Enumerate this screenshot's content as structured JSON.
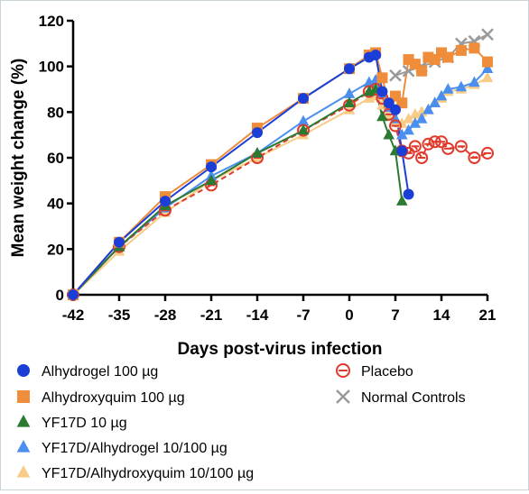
{
  "chart_data": {
    "type": "line",
    "title": "",
    "xlabel": "Days post-virus infection",
    "ylabel": "Mean weight change (%)",
    "xticks": [
      -42,
      -35,
      -28,
      -21,
      -14,
      -7,
      0,
      7,
      14,
      21
    ],
    "yticks": [
      0,
      20,
      40,
      60,
      80,
      100,
      120
    ],
    "xlim": [
      -42,
      21
    ],
    "ylim": [
      0,
      120
    ],
    "grid": false,
    "legend_position": "bottom",
    "series": [
      {
        "name": "Alhydrogel 100 µg",
        "color": "#1a3ed6",
        "marker": "circle",
        "dash": "",
        "x": [
          -42,
          -35,
          -28,
          -21,
          -14,
          -7,
          0,
          3,
          4,
          5,
          6,
          7,
          8,
          9
        ],
        "y": [
          0,
          23,
          41,
          56,
          71,
          86,
          99,
          104,
          105,
          89,
          84,
          81,
          63,
          44
        ]
      },
      {
        "name": "Alhydroxyquim 100 µg",
        "color": "#ef8d3b",
        "marker": "square",
        "dash": "",
        "x": [
          -42,
          -35,
          -28,
          -21,
          -14,
          -7,
          0,
          3,
          4,
          5,
          6,
          7,
          8,
          9,
          10,
          11,
          12,
          13,
          14,
          15,
          17,
          19,
          21
        ],
        "y": [
          0,
          23,
          43,
          57,
          73,
          86,
          99,
          105,
          106,
          95,
          84,
          87,
          84,
          103,
          101,
          98,
          104,
          103,
          106,
          104,
          107,
          108,
          102
        ]
      },
      {
        "name": "YF17D 10 µg",
        "color": "#2c7a32",
        "marker": "triangle",
        "dash": "",
        "x": [
          -42,
          -35,
          -28,
          -21,
          -14,
          -7,
          0,
          3,
          4,
          5,
          6,
          7,
          8
        ],
        "y": [
          0,
          21,
          39,
          50,
          62,
          72,
          84,
          89,
          90,
          78,
          70,
          63,
          41
        ]
      },
      {
        "name": "YF17D/Alhydrogel 10/100 µg",
        "color": "#4a8ff0",
        "marker": "triangle",
        "dash": "",
        "x": [
          -42,
          -35,
          -28,
          -21,
          -14,
          -7,
          0,
          3,
          4,
          5,
          6,
          7,
          8,
          9,
          10,
          11,
          12,
          13,
          14,
          15,
          17,
          19,
          21
        ],
        "y": [
          0,
          21,
          38,
          52,
          62,
          76,
          88,
          93,
          94,
          88,
          82,
          77,
          70,
          72,
          75,
          77,
          81,
          84,
          87,
          90,
          91,
          93,
          99
        ]
      },
      {
        "name": "YF17D/Alhydroxyquim 10/100 µg",
        "color": "#f7cc86",
        "marker": "triangle",
        "dash": "",
        "x": [
          -42,
          -35,
          -28,
          -21,
          -14,
          -7,
          0,
          3,
          4,
          5,
          6,
          7,
          8,
          9,
          10,
          11,
          12,
          13,
          14,
          15,
          17,
          19,
          21
        ],
        "y": [
          0,
          19,
          36,
          50,
          60,
          70,
          81,
          86,
          87,
          83,
          78,
          76,
          75,
          77,
          79,
          80,
          81,
          84,
          86,
          89,
          90,
          92,
          95
        ]
      },
      {
        "name": "Placebo",
        "color": "#e03a2c",
        "marker": "circle-open",
        "dash": "6,4",
        "x": [
          -42,
          -35,
          -28,
          -21,
          -14,
          -7,
          0,
          3,
          4,
          5,
          6,
          7,
          8,
          9,
          10,
          11,
          12,
          13,
          14,
          15,
          17,
          19,
          21
        ],
        "y": [
          0,
          21,
          37,
          48,
          60,
          72,
          83,
          89,
          90,
          86,
          79,
          74,
          63,
          62,
          65,
          60,
          66,
          67,
          67,
          64,
          65,
          60,
          62
        ]
      },
      {
        "name": "Normal Controls",
        "color": "#9a9a9a",
        "marker": "x",
        "dash": "",
        "x": [
          7,
          9,
          11,
          13,
          15,
          17,
          19,
          21
        ],
        "y": [
          96,
          98,
          100,
          102,
          104,
          110,
          111,
          114
        ]
      }
    ]
  }
}
